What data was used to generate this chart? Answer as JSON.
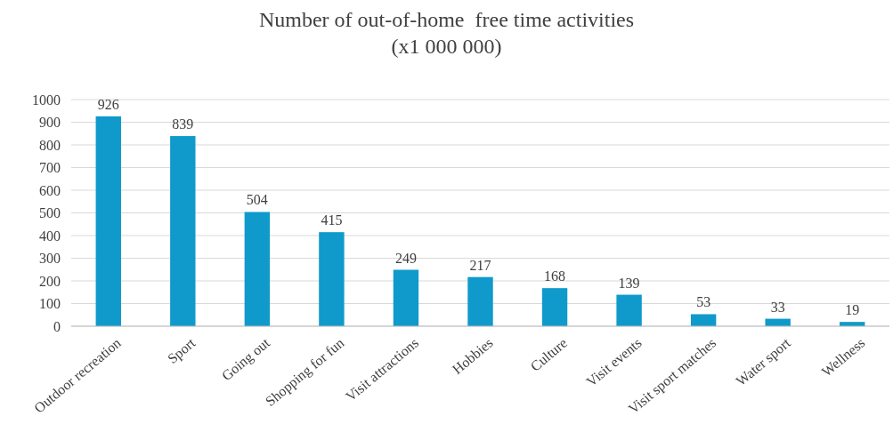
{
  "chart_data": {
    "type": "bar",
    "title": "Number of out-of-home  free time activities\n(x1 000 000)",
    "categories": [
      "Outdoor recreation",
      "Sport",
      "Going out",
      "Shopping for fun",
      "Visit attractions",
      "Hobbies",
      "Culture",
      "Visit events",
      "Visit sport matches",
      "Water sport",
      "Wellness"
    ],
    "values": [
      926,
      839,
      504,
      415,
      249,
      217,
      168,
      139,
      53,
      33,
      19
    ],
    "color": "#0f9acb",
    "ylim": [
      0,
      1000
    ],
    "yticks": [
      0,
      100,
      200,
      300,
      400,
      500,
      600,
      700,
      800,
      900,
      1000
    ],
    "grid": "y",
    "data_labels": true
  }
}
